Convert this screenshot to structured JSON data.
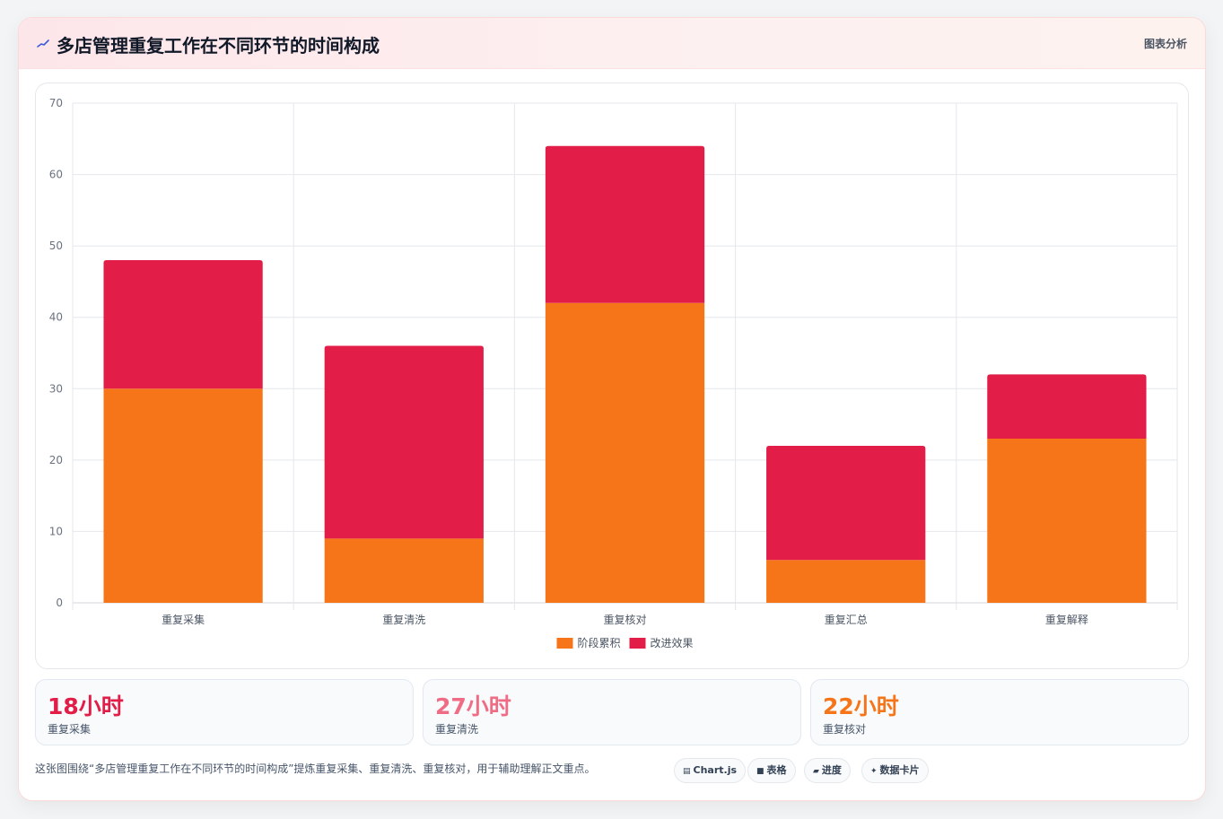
{
  "header": {
    "title": "多店管理重复工作在不同环节的时间构成",
    "link_label": "图表分析"
  },
  "colors": {
    "series_stage": "#f77519",
    "series_improve": "#e11d48",
    "stat_1": "#e11d48",
    "stat_2": "#f06b84",
    "stat_3": "#f77519"
  },
  "chart_data": {
    "type": "bar",
    "stacked": true,
    "categories": [
      "重复采集",
      "重复清洗",
      "重复核对",
      "重复汇总",
      "重复解释"
    ],
    "series": [
      {
        "name": "阶段累积",
        "values": [
          30,
          9,
          42,
          6,
          23
        ],
        "color": "#f77519"
      },
      {
        "name": "改进效果",
        "values": [
          18,
          27,
          22,
          16,
          9
        ],
        "color": "#e11d48"
      }
    ],
    "ylim": [
      0,
      70
    ],
    "yticks": [
      0,
      10,
      20,
      30,
      40,
      50,
      60,
      70
    ],
    "grid": true,
    "legend_position": "bottom"
  },
  "stats": [
    {
      "value": "18小时",
      "label": "重复采集"
    },
    {
      "value": "27小时",
      "label": "重复清洗"
    },
    {
      "value": "22小时",
      "label": "重复核对"
    }
  ],
  "footer": {
    "text": "这张图围绕“多店管理重复工作在不同环节的时间构成”提炼重复采集、重复清洗、重复核对，用于辅助理解正文重点。",
    "tags": [
      {
        "icon": "chart-icon",
        "label": "Chart.js"
      },
      {
        "icon": "table-icon",
        "label": "表格"
      },
      {
        "icon": "progress-icon",
        "label": "进度"
      },
      {
        "icon": "sparkle-icon",
        "label": "数据卡片"
      }
    ]
  }
}
